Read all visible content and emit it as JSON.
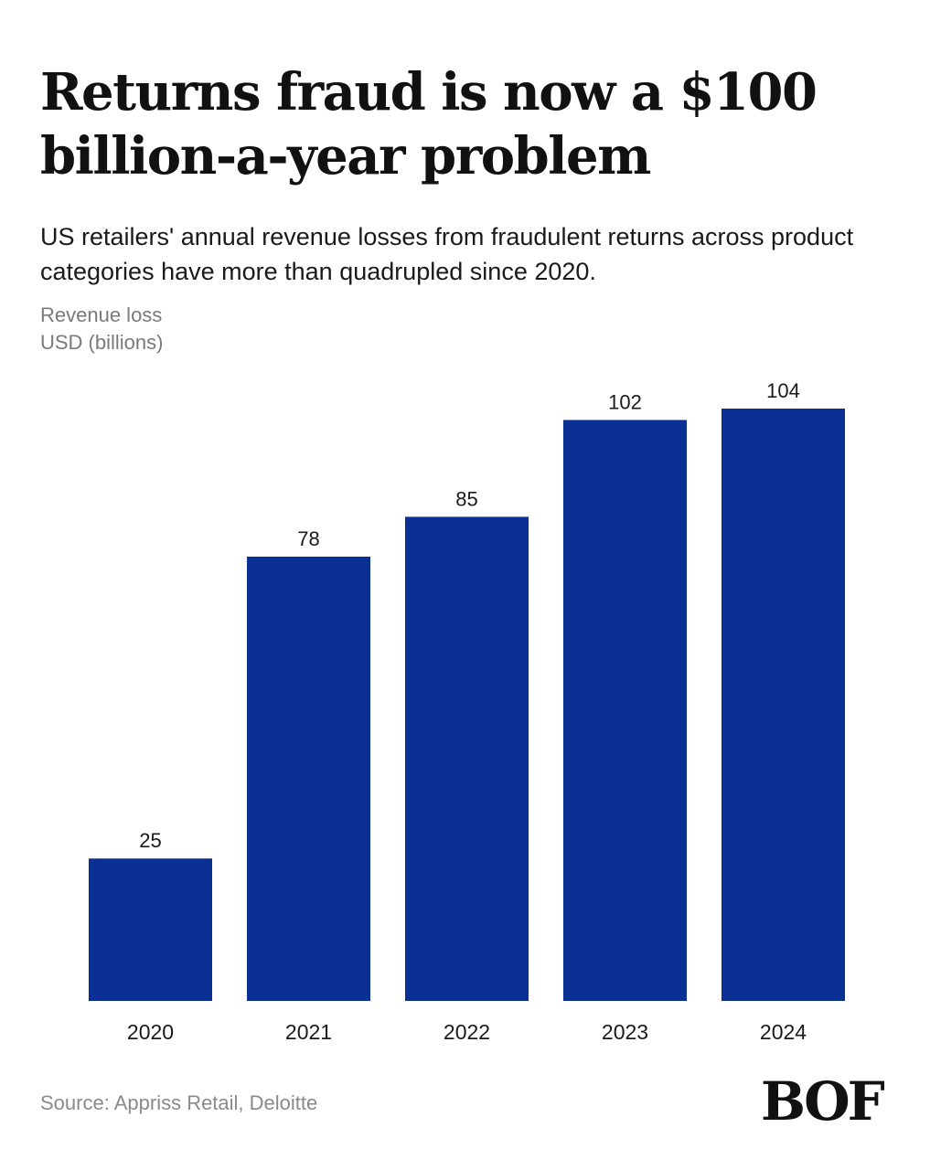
{
  "header": {
    "title": "Returns fraud is now a $100 billion-a-year problem",
    "subtitle": "US retailers' annual revenue losses from fraudulent returns across product categories have more than quadrupled since 2020.",
    "ylabel_line1": "Revenue loss",
    "ylabel_line2": "USD (billions)"
  },
  "footer": {
    "source": "Source: Appriss Retail, Deloitte",
    "logo": "BOF"
  },
  "colors": {
    "bar": "#0a3093",
    "label": "#1a1a1a"
  },
  "chart_data": {
    "type": "bar",
    "categories": [
      "2020",
      "2021",
      "2022",
      "2023",
      "2024"
    ],
    "values": [
      25,
      78,
      85,
      102,
      104
    ],
    "title": "Returns fraud is now a $100 billion-a-year problem",
    "ylabel": "Revenue loss USD (billions)",
    "xlabel": "",
    "ylim": [
      0,
      104
    ],
    "grid": false,
    "data_labels": true
  }
}
